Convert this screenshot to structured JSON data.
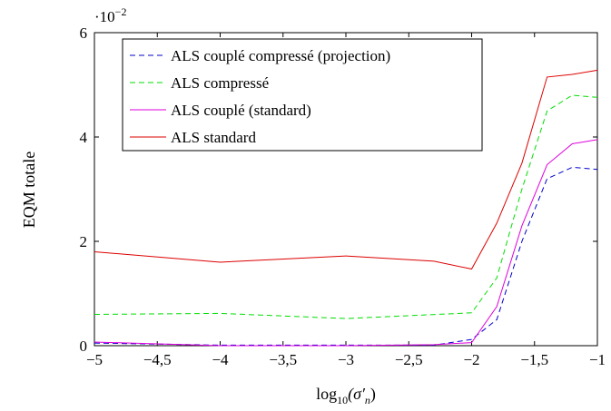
{
  "chart_data": {
    "type": "line",
    "xlabel_base": "log",
    "xlabel_sub": "10",
    "xlabel_arg": "(σ′",
    "xlabel_arg_sub": "n",
    "xlabel_close": ")",
    "ylabel": "EQM totale",
    "y_scale_base": "·10",
    "y_scale_exp": "−2",
    "xlim": [
      -5,
      -1
    ],
    "ylim": [
      0,
      6
    ],
    "xticks": [
      -5,
      -4.5,
      -4,
      -3.5,
      -3,
      -2.5,
      -2,
      -1.5,
      -1
    ],
    "xtick_labels": [
      "−5",
      "−4,5",
      "−4",
      "−3,5",
      "−3",
      "−2,5",
      "−2",
      "−1,5",
      "−1"
    ],
    "yticks": [
      0,
      2,
      4,
      6
    ],
    "ytick_labels": [
      "0",
      "2",
      "4",
      "6"
    ],
    "legend_position": "top-left",
    "grid": false,
    "series": [
      {
        "name": "ALS couplé compressé (projection)",
        "color": "#0000cc",
        "dash": "dashed",
        "x": [
          -5,
          -4,
          -3,
          -2.3,
          -2,
          -1.8,
          -1.6,
          -1.4,
          -1.2,
          -1
        ],
        "y": [
          0.05,
          0.01,
          0.01,
          0.01,
          0.12,
          0.5,
          2.0,
          3.2,
          3.42,
          3.38
        ]
      },
      {
        "name": "ALS compressé",
        "color": "#00dd00",
        "dash": "dashed",
        "x": [
          -5,
          -4,
          -3,
          -2,
          -1.8,
          -1.6,
          -1.4,
          -1.2,
          -1
        ],
        "y": [
          0.6,
          0.62,
          0.52,
          0.63,
          1.3,
          3.0,
          4.5,
          4.8,
          4.76
        ]
      },
      {
        "name": "ALS couplé (standard)",
        "color": "#dd00dd",
        "dash": "solid",
        "x": [
          -5,
          -4,
          -3,
          -2.3,
          -2,
          -1.8,
          -1.6,
          -1.4,
          -1.2,
          -1
        ],
        "y": [
          0.07,
          0.0,
          0.0,
          0.02,
          0.06,
          0.75,
          2.3,
          3.47,
          3.87,
          3.95
        ]
      },
      {
        "name": "ALS standard",
        "color": "#dd0000",
        "dash": "solid",
        "x": [
          -5,
          -4,
          -3,
          -2.3,
          -2,
          -1.8,
          -1.6,
          -1.4,
          -1.2,
          -1
        ],
        "y": [
          1.8,
          1.6,
          1.72,
          1.62,
          1.47,
          2.35,
          3.5,
          5.15,
          5.2,
          5.28
        ]
      }
    ]
  }
}
